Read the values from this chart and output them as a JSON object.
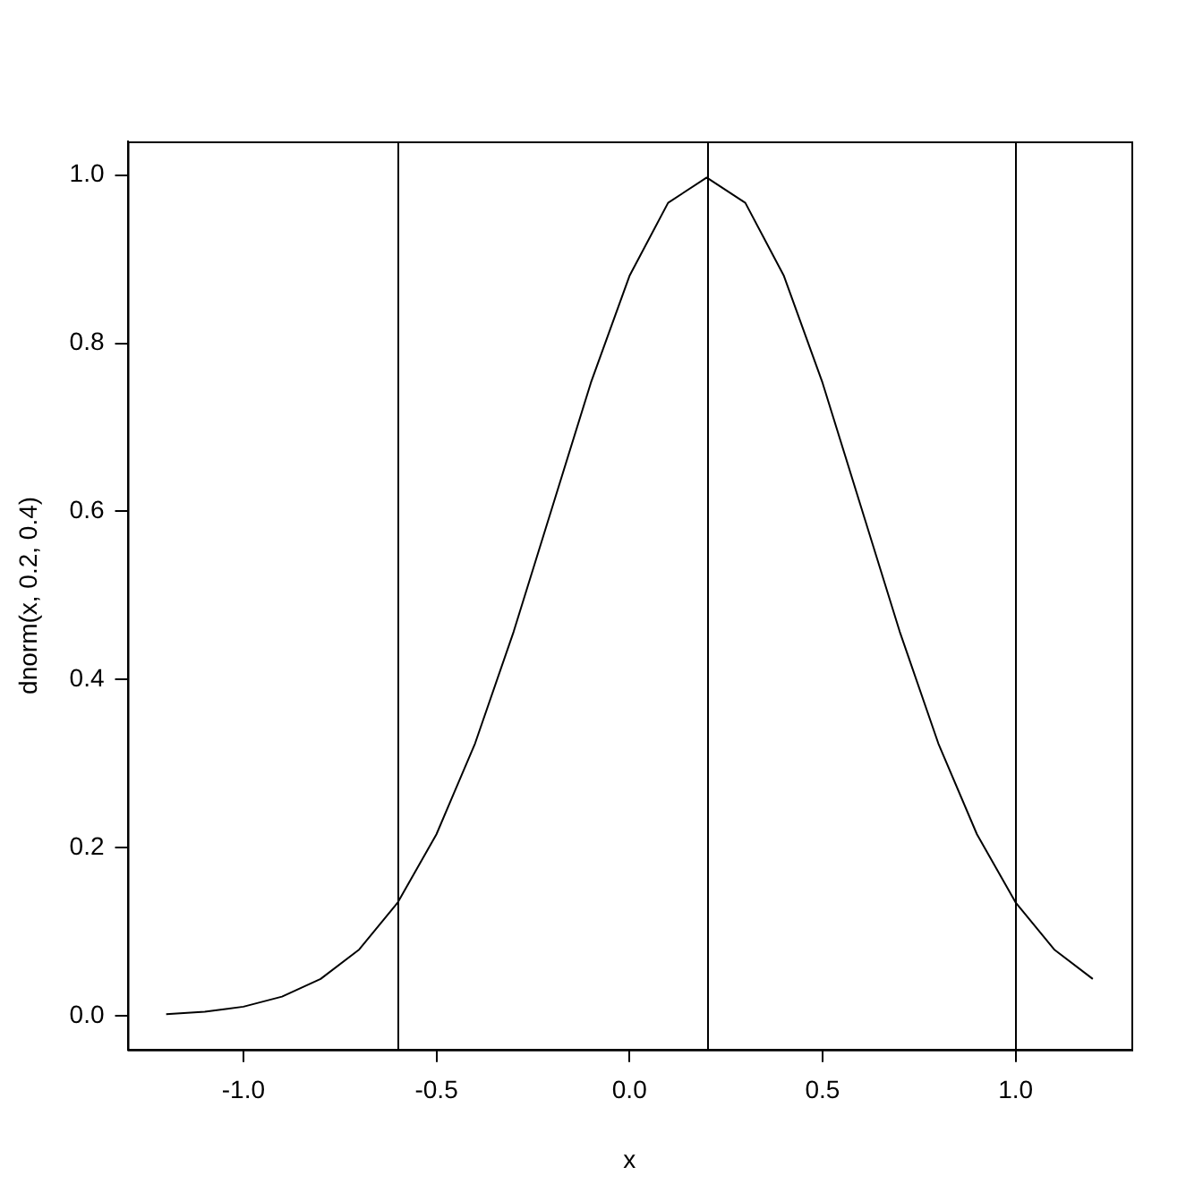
{
  "chart_data": {
    "type": "line",
    "xlabel": "x",
    "ylabel": "dnorm(x, 0.2, 0.4)",
    "x": [
      -1.2,
      -1.1,
      -1.0,
      -0.9,
      -0.8,
      -0.7,
      -0.6,
      -0.5,
      -0.4,
      -0.3,
      -0.2,
      -0.1,
      0.0,
      0.1,
      0.2,
      0.3,
      0.4,
      0.5,
      0.6,
      0.7,
      0.8,
      0.9,
      1.0,
      1.1,
      1.2
    ],
    "series": [
      {
        "color": "#000000",
        "values": [
          0.002,
          0.005,
          0.011,
          0.023,
          0.044,
          0.079,
          0.135,
          0.216,
          0.324,
          0.457,
          0.605,
          0.753,
          0.88,
          0.967,
          0.997,
          0.967,
          0.88,
          0.753,
          0.605,
          0.457,
          0.324,
          0.216,
          0.135,
          0.079,
          0.044
        ]
      }
    ],
    "xlim": [
      -1.3,
      1.3
    ],
    "ylim": [
      -0.04,
      1.04
    ],
    "xticks": [
      {
        "value": -1.0,
        "label": "-1.0"
      },
      {
        "value": -0.5,
        "label": "-0.5"
      },
      {
        "value": 0,
        "label": "0.0"
      },
      {
        "value": 0.5,
        "label": "0.5"
      },
      {
        "value": 1.0,
        "label": "1.0"
      }
    ],
    "yticks": [
      {
        "value": 0,
        "label": "0.0"
      },
      {
        "value": 0.2,
        "label": "0.2"
      },
      {
        "value": 0.4,
        "label": "0.4"
      },
      {
        "value": 0.6,
        "label": "0.6"
      },
      {
        "value": 0.8,
        "label": "0.8"
      },
      {
        "value": 1.0,
        "label": "1.0"
      }
    ],
    "ref_lines": [
      {
        "axis": "x",
        "value": -0.6,
        "color": "#000000"
      },
      {
        "axis": "x",
        "value": 0.2,
        "color": "#000000"
      },
      {
        "axis": "x",
        "value": 1.0,
        "color": "#000000"
      }
    ],
    "grid": false,
    "legend": false,
    "marker": "none",
    "line_style": "solid"
  }
}
